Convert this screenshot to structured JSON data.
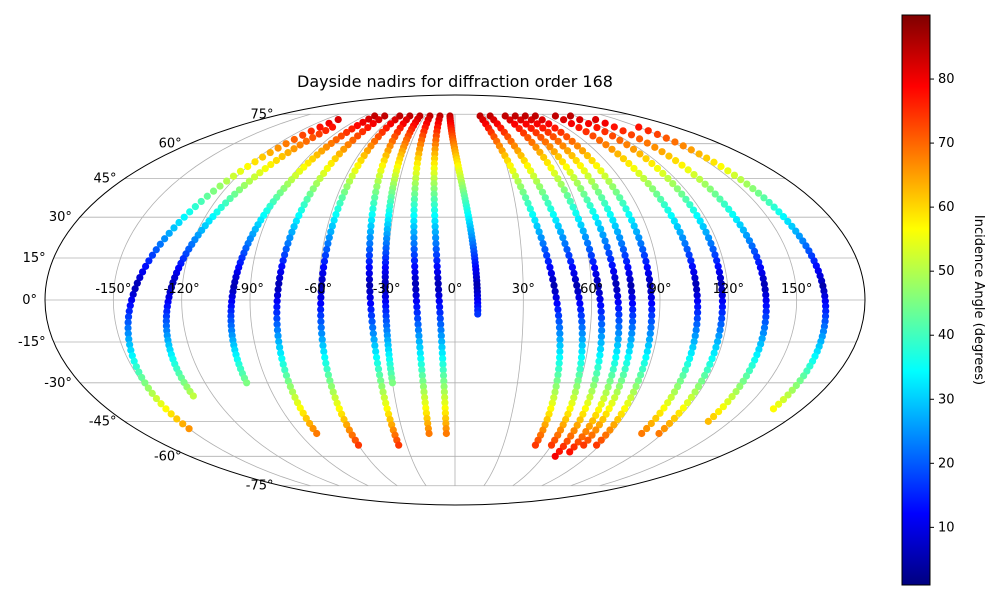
{
  "chart_data": {
    "type": "scatter",
    "projection": "mollweide",
    "title": "Dayside nadirs for diffraction order 168",
    "x_ticks": [
      -150,
      -120,
      -90,
      -60,
      -30,
      0,
      30,
      60,
      90,
      120,
      150
    ],
    "x_tick_labels": [
      "-150°",
      "-120°",
      "-90°",
      "-60°",
      "-30°",
      "0°",
      "30°",
      "60°",
      "90°",
      "120°",
      "150°"
    ],
    "y_ticks": [
      -75,
      -60,
      -45,
      -30,
      -15,
      0,
      15,
      30,
      45,
      60,
      75
    ],
    "y_tick_labels": [
      "-75°",
      "-60°",
      "-45°",
      "-30°",
      "-15°",
      "0°",
      "15°",
      "30°",
      "45°",
      "60°",
      "75°"
    ],
    "grid": true,
    "colormap": "jet",
    "colorbar": {
      "label": "Incidence Angle (degrees)",
      "range": [
        1,
        90
      ],
      "ticks": [
        10,
        20,
        30,
        40,
        50,
        60,
        70,
        80
      ],
      "tick_labels": [
        "10",
        "20",
        "30",
        "40",
        "50",
        "60",
        "70",
        "80"
      ]
    },
    "tracks": [
      {
        "lon0": -108,
        "lon1": -150,
        "lat0": 72,
        "lat1": -48
      },
      {
        "lon0": -100,
        "lon1": -130,
        "lat0": 68,
        "lat1": -35
      },
      {
        "lon0": -80,
        "lon1": -100,
        "lat0": 74,
        "lat1": -30
      },
      {
        "lon0": -70,
        "lon1": -80,
        "lat0": 74,
        "lat1": -50
      },
      {
        "lon0": -55,
        "lon1": -60,
        "lat0": 74,
        "lat1": -55
      },
      {
        "lon0": -45,
        "lon1": -35,
        "lat0": 74,
        "lat1": -55
      },
      {
        "lon0": -35,
        "lon1": -30,
        "lat0": 74,
        "lat1": -30
      },
      {
        "lon0": -25,
        "lon1": -15,
        "lat0": 74,
        "lat1": -50
      },
      {
        "lon0": -15,
        "lon1": -5,
        "lat0": 74,
        "lat1": -50
      },
      {
        "lon0": -5,
        "lon1": 10,
        "lat0": 74,
        "lat1": -5
      },
      {
        "lon0": 25,
        "lon1": 50,
        "lat0": 74,
        "lat1": -55
      },
      {
        "lon0": 35,
        "lon1": 60,
        "lat0": 74,
        "lat1": -55
      },
      {
        "lon0": 50,
        "lon1": 68,
        "lat0": 74,
        "lat1": -60
      },
      {
        "lon0": 60,
        "lon1": 75,
        "lat0": 74,
        "lat1": -58
      },
      {
        "lon0": 70,
        "lon1": 80,
        "lat0": 74,
        "lat1": -55
      },
      {
        "lon0": 80,
        "lon1": 88,
        "lat0": 74,
        "lat1": -55
      },
      {
        "lon0": 100,
        "lon1": 108,
        "lat0": 74,
        "lat1": -50
      },
      {
        "lon0": 115,
        "lon1": 118,
        "lat0": 74,
        "lat1": -50
      },
      {
        "lon0": 130,
        "lon1": 138,
        "lat0": 72,
        "lat1": -45
      },
      {
        "lon0": 150,
        "lon1": 165,
        "lat0": 68,
        "lat1": -40
      }
    ]
  }
}
